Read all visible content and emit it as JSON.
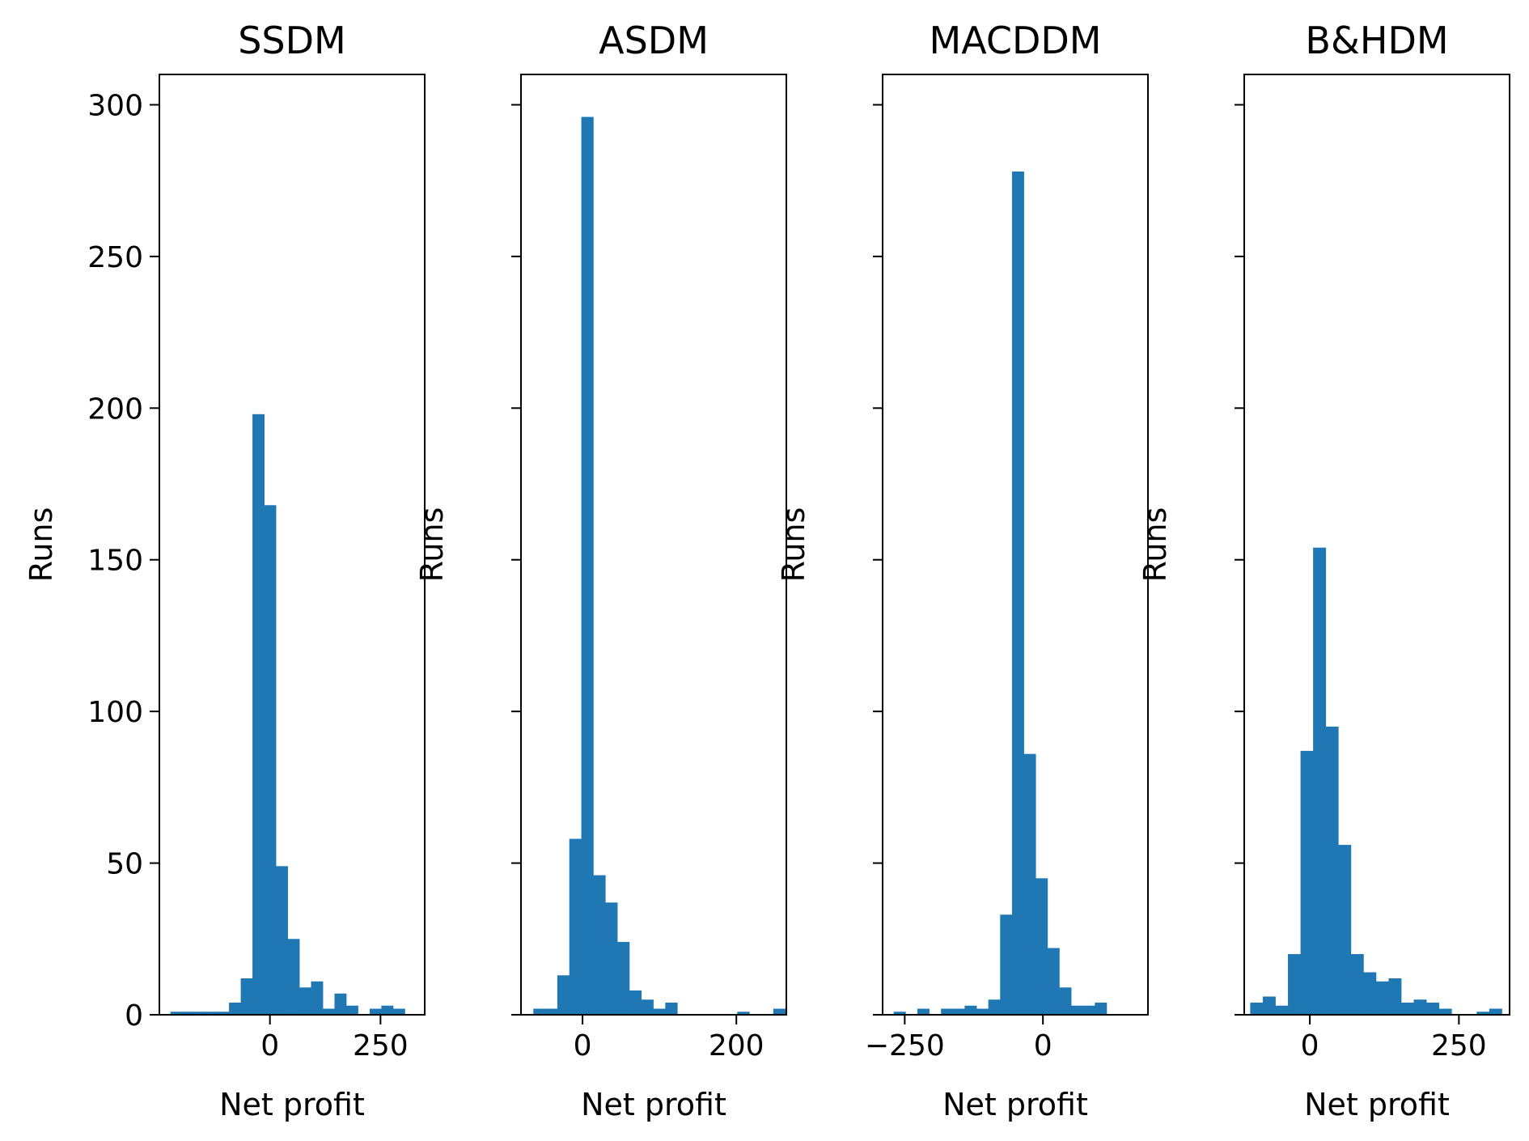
{
  "chart_data": [
    {
      "type": "bar",
      "title": "SSDM",
      "xlabel": "Net profit",
      "ylabel": "Runs",
      "xlim": [
        -250,
        350
      ],
      "ylim": [
        0,
        310
      ],
      "xticks": [
        0,
        250
      ],
      "xtick_labels": [
        "0",
        "250"
      ],
      "yticks": [
        0,
        50,
        100,
        150,
        200,
        250,
        300
      ],
      "ytick_labels": [
        "0",
        "50",
        "100",
        "150",
        "200",
        "250",
        "300"
      ],
      "show_ytick_labels": true,
      "bin_start": -225,
      "bin_width": 26.5,
      "values": [
        1,
        1,
        1,
        1,
        1,
        4,
        12,
        198,
        168,
        49,
        25,
        9,
        11,
        2,
        7,
        3,
        0,
        2,
        3,
        2
      ],
      "color": "#1f77b4",
      "grid": false
    },
    {
      "type": "bar",
      "title": "ASDM",
      "xlabel": "Net profit",
      "ylabel": "Runs",
      "xlim": [
        -80,
        265
      ],
      "ylim": [
        0,
        310
      ],
      "xticks": [
        0,
        200
      ],
      "xtick_labels": [
        "0",
        "200"
      ],
      "yticks": [
        0,
        50,
        100,
        150,
        200,
        250,
        300
      ],
      "ytick_labels": [
        "0",
        "50",
        "100",
        "150",
        "200",
        "250",
        "300"
      ],
      "show_ytick_labels": false,
      "bin_start": -64,
      "bin_width": 15.6,
      "values": [
        2,
        2,
        13,
        58,
        296,
        46,
        37,
        24,
        8,
        5,
        2,
        4,
        0,
        0,
        0,
        0,
        0,
        1,
        0,
        0,
        2
      ],
      "color": "#1f77b4",
      "grid": false
    },
    {
      "type": "bar",
      "title": "MACDDM",
      "xlabel": "Net profit",
      "ylabel": "Runs",
      "xlim": [
        -290,
        190
      ],
      "ylim": [
        0,
        310
      ],
      "xticks": [
        -250,
        0
      ],
      "xtick_labels": [
        "−250",
        "0"
      ],
      "yticks": [
        0,
        50,
        100,
        150,
        200,
        250,
        300
      ],
      "ytick_labels": [
        "0",
        "50",
        "100",
        "150",
        "200",
        "250",
        "300"
      ],
      "show_ytick_labels": false,
      "bin_start": -270,
      "bin_width": 21.4,
      "values": [
        1,
        0,
        2,
        0,
        2,
        2,
        3,
        2,
        5,
        33,
        278,
        86,
        45,
        22,
        9,
        3,
        3,
        4
      ],
      "color": "#1f77b4",
      "grid": false
    },
    {
      "type": "bar",
      "title": "B&HDM",
      "xlabel": "Net profit",
      "ylabel": "Runs",
      "xlim": [
        -110,
        335
      ],
      "ylim": [
        0,
        310
      ],
      "xticks": [
        0,
        250
      ],
      "xtick_labels": [
        "0",
        "250"
      ],
      "yticks": [
        0,
        50,
        100,
        150,
        200,
        250,
        300
      ],
      "ytick_labels": [
        "0",
        "50",
        "100",
        "150",
        "200",
        "250",
        "300"
      ],
      "show_ytick_labels": false,
      "bin_start": -100,
      "bin_width": 21.1,
      "values": [
        4,
        6,
        3,
        20,
        87,
        154,
        95,
        56,
        20,
        14,
        11,
        12,
        4,
        5,
        4,
        2,
        0,
        0,
        1,
        2
      ],
      "color": "#1f77b4",
      "grid": false
    }
  ]
}
